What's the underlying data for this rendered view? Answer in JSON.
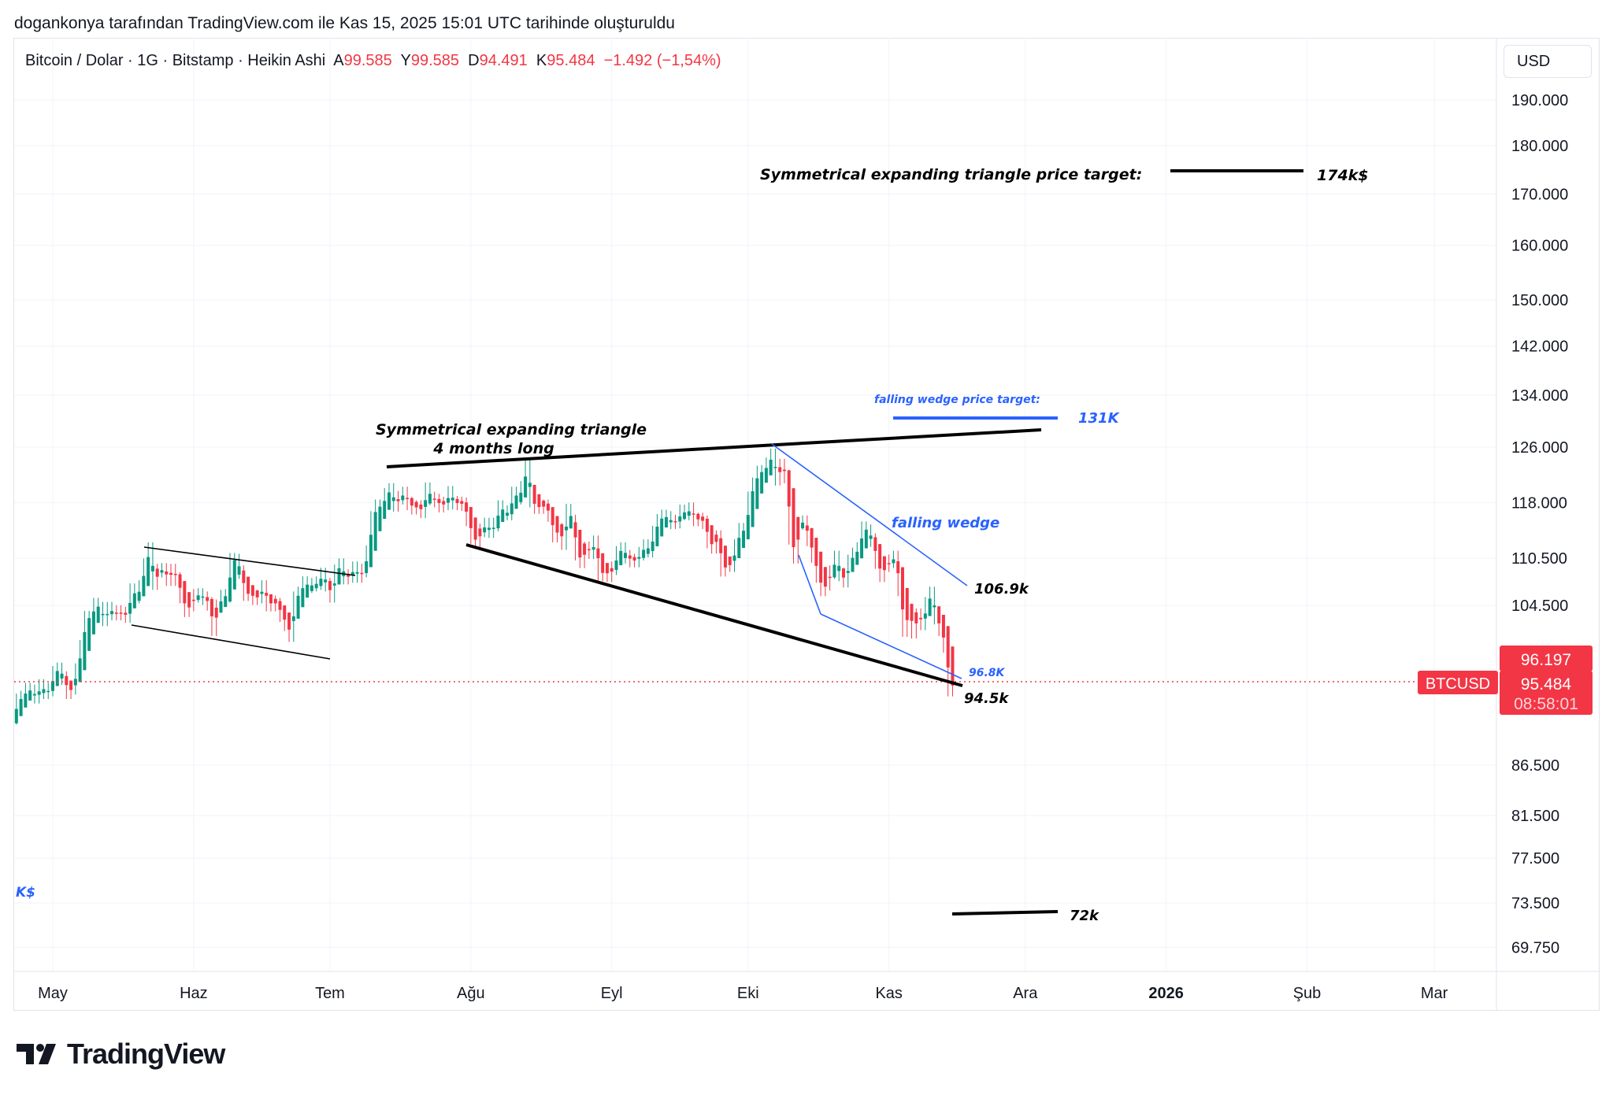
{
  "credit": "dogankonya tarafından TradingView.com ile Kas 15, 2025 15:01 UTC tarihinde oluşturuldu",
  "legend": {
    "symbol": "Bitcoin / Dolar · 1G · Bitstamp · Heikin Ashi",
    "open_label": "A",
    "open": "99.585",
    "high_label": "Y",
    "high": "99.585",
    "low_label": "D",
    "low": "94.491",
    "close_label": "K",
    "close": "95.484",
    "change": "−1.492 (−1,54%)"
  },
  "currency_button": "USD",
  "price_labels": {
    "symbol_tag": "BTCUSD",
    "prev_close": "96.197",
    "last_price": "95.484",
    "countdown": "08:58:01"
  },
  "colors": {
    "up": "#089981",
    "down": "#f23645",
    "annotation_blue": "#2962ff",
    "annotation_black": "#000000"
  },
  "annotations": {
    "triangle_title": "Symmetrical expanding triangle",
    "triangle_duration": "4 months long",
    "triangle_target_label": "Symmetrical expanding triangle price target:",
    "triangle_target_value": "174k$",
    "wedge_label": "falling wedge",
    "wedge_target_label": "falling wedge price target:",
    "wedge_target_value": "131K",
    "wedge_upper_value": "106.9k",
    "wedge_lower_value": "96.8K",
    "support_value": "94.5k",
    "low_target_value": "72k",
    "left_cut_label": "K$"
  },
  "logo_text": "TradingView",
  "chart_data": {
    "type": "candlestick-heikin-ashi",
    "symbol": "BTCUSD",
    "interval": "1D",
    "y_scale": "log",
    "ylim": [
      68000,
      198000
    ],
    "grid": true,
    "y_ticks": [
      "190.000",
      "180.000",
      "170.000",
      "160.000",
      "150.000",
      "142.000",
      "134.000",
      "126.000",
      "118.000",
      "110.500",
      "104.500",
      "86.500",
      "81.500",
      "77.500",
      "73.500",
      "69.750"
    ],
    "x_ticks": [
      {
        "label": "May",
        "date": "2025-05-01"
      },
      {
        "label": "Haz",
        "date": "2025-06-01"
      },
      {
        "label": "Tem",
        "date": "2025-07-01"
      },
      {
        "label": "Ağu",
        "date": "2025-08-01"
      },
      {
        "label": "Eyl",
        "date": "2025-09-01"
      },
      {
        "label": "Eki",
        "date": "2025-10-01"
      },
      {
        "label": "Kas",
        "date": "2025-11-01"
      },
      {
        "label": "Ara",
        "date": "2025-12-01"
      },
      {
        "label": "2026",
        "date": "2026-01-01",
        "bold": true
      },
      {
        "label": "Şub",
        "date": "2026-02-01"
      },
      {
        "label": "Mar",
        "date": "2026-03-01"
      }
    ],
    "first_date": "2025-04-22",
    "daily_close_k": [
      91.5,
      93.4,
      93.7,
      94.6,
      94.4,
      93.8,
      95.0,
      94.3,
      94.6,
      96.5,
      96.9,
      95.9,
      94.3,
      94.8,
      96.8,
      99.5,
      103.0,
      102.9,
      104.6,
      104.1,
      102.8,
      104.1,
      103.5,
      103.7,
      103.5,
      103.2,
      106.4,
      105.6,
      106.8,
      109.6,
      111.7,
      107.3,
      108.9,
      109.0,
      107.8,
      108.9,
      107.8,
      105.6,
      103.9,
      104.6,
      105.7,
      105.8,
      105.4,
      104.7,
      101.6,
      104.4,
      105.6,
      105.7,
      110.3,
      110.2,
      108.7,
      105.9,
      106.0,
      105.4,
      105.6,
      106.8,
      104.6,
      104.9,
      104.6,
      103.3,
      102.2,
      100.9,
      105.4,
      106.0,
      107.3,
      106.9,
      107.1,
      107.3,
      108.4,
      107.1,
      105.7,
      108.8,
      109.6,
      108.0,
      108.2,
      109.2,
      108.2,
      108.9,
      111.3,
      115.9,
      117.5,
      117.4,
      119.1,
      119.8,
      117.7,
      118.7,
      119.3,
      117.9,
      117.3,
      117.4,
      116.8,
      119.9,
      118.6,
      118.3,
      117.6,
      117.9,
      119.4,
      118.0,
      117.9,
      117.8,
      115.7,
      113.3,
      112.6,
      114.2,
      115.0,
      114.1,
      115.0,
      117.4,
      116.7,
      116.5,
      119.3,
      118.7,
      120.1,
      123.3,
      118.3,
      117.4,
      117.4,
      117.5,
      116.3,
      113.5,
      114.3,
      112.5,
      116.9,
      115.4,
      111.1,
      110.1,
      111.8,
      111.3,
      112.6,
      108.4,
      108.8,
      108.3,
      109.2,
      111.2,
      111.7,
      110.7,
      110.2,
      110.2,
      111.1,
      112.1,
      111.5,
      113.9,
      115.5,
      116.1,
      115.9,
      115.3,
      115.4,
      116.8,
      116.5,
      117.1,
      115.7,
      115.7,
      115.3,
      112.7,
      112.0,
      113.3,
      109.0,
      109.6,
      109.6,
      112.1,
      114.3,
      114.0,
      118.6,
      120.6,
      122.3,
      122.4,
      123.5,
      124.8,
      121.4,
      123.3,
      121.7,
      113.2,
      110.7,
      115.2,
      115.3,
      113.0,
      110.8,
      108.2,
      106.5,
      107.2,
      108.7,
      110.6,
      108.4,
      107.6,
      110.1,
      111.0,
      111.7,
      114.5,
      114.1,
      112.9,
      110.0,
      108.3,
      109.6,
      110.1,
      110.6,
      106.5,
      101.5,
      103.9,
      101.3,
      103.3,
      102.3,
      104.7,
      106.0,
      103.0,
      101.6,
      99.6,
      94.6,
      95.5
    ],
    "last_price": 95.484,
    "last_price_line": "dotted-red"
  }
}
